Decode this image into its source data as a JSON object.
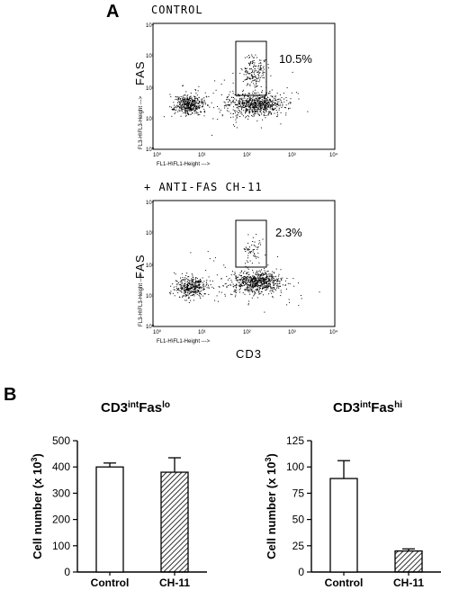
{
  "panel_a": {
    "letter": "A",
    "cd3_label": "CD3",
    "plots": [
      {
        "title": "CONTROL",
        "gate_percent": "10.5%",
        "y_axis_label": "FAS",
        "detector_y_label": "FL3-H\\FL3-Height --->",
        "detector_x_label": "FL1-H\\FL1-Height --->",
        "y_ticks": [
          "10⁴",
          "10³",
          "10²",
          "10¹",
          "10⁰"
        ],
        "x_ticks": [
          "10⁰",
          "10¹",
          "10²",
          "10³",
          "10⁴"
        ]
      },
      {
        "title": "+ ANTI-FAS CH-11",
        "gate_percent": "2.3%",
        "y_axis_label": "FAS",
        "detector_y_label": "FL3-H\\FL3-Height --->",
        "detector_x_label": "FL1-H\\FL1-Height --->",
        "y_ticks": [
          "10⁴",
          "10³",
          "10²",
          "10¹",
          "10⁰"
        ],
        "x_ticks": [
          "10⁰",
          "10¹",
          "10²",
          "10³",
          "10⁴"
        ]
      }
    ]
  },
  "panel_b": {
    "letter": "B"
  },
  "chart_data": [
    {
      "type": "bar",
      "title_base": "CD3",
      "title_sup1": "int",
      "title_mid": "Fas",
      "title_sup2": "lo",
      "ylabel_text": "Cell number (x 10",
      "ylabel_sup": "3",
      "ylabel_close": ")",
      "categories": [
        "Control",
        "CH-11"
      ],
      "values": [
        400,
        380
      ],
      "errors": [
        15,
        55
      ],
      "patterns": [
        "open",
        "hatched"
      ],
      "ylim": [
        0,
        500
      ],
      "yticks": [
        0,
        100,
        200,
        300,
        400,
        500
      ]
    },
    {
      "type": "bar",
      "title_base": "CD3",
      "title_sup1": "int",
      "title_mid": "Fas",
      "title_sup2": "hi",
      "ylabel_text": "Cell number (x 10",
      "ylabel_sup": "3",
      "ylabel_close": ")",
      "categories": [
        "Control",
        "CH-11"
      ],
      "values": [
        89,
        20
      ],
      "errors": [
        17,
        2
      ],
      "patterns": [
        "open",
        "hatched"
      ],
      "ylim": [
        0,
        125
      ],
      "yticks": [
        0,
        25,
        50,
        75,
        100,
        125
      ]
    }
  ]
}
